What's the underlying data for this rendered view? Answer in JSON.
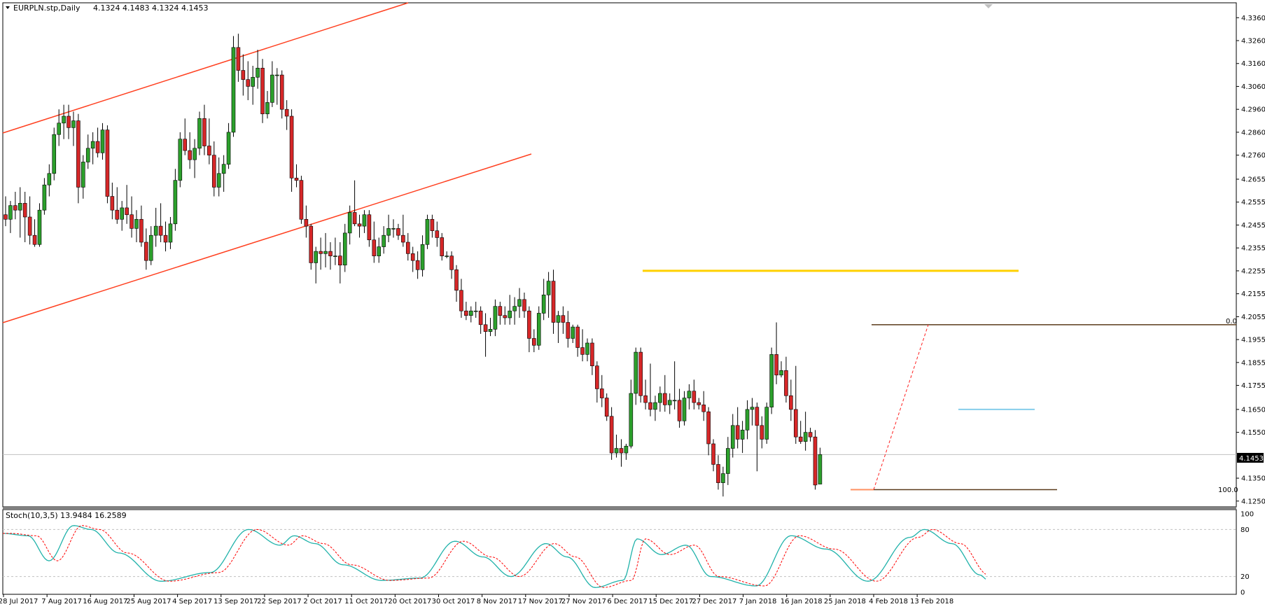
{
  "header": {
    "symbol_label": "EURPLN.stp,Daily",
    "ohlc_label": "4.1324 4.1483 4.1324 4.1453"
  },
  "price_axis": {
    "ticks": [
      "4.3360",
      "4.3260",
      "4.3160",
      "4.3060",
      "4.2960",
      "4.2860",
      "4.2760",
      "4.2655",
      "4.2555",
      "4.2455",
      "4.2355",
      "4.2255",
      "4.2155",
      "4.2055",
      "4.1955",
      "4.1855",
      "4.1755",
      "4.1650",
      "4.1550",
      "4.1350",
      "4.1250"
    ],
    "current_price": "4.1453"
  },
  "fib_labels": {
    "top": "0.0",
    "bottom": "100.0"
  },
  "stoch_panel": {
    "label": "Stoch(10,3,5) 13.9484 16.2589",
    "ticks": [
      "100",
      "80",
      "20",
      "0"
    ]
  },
  "time_axis": {
    "labels": [
      "28 Jul 2017",
      "7 Aug 2017",
      "16 Aug 2017",
      "25 Aug 2017",
      "4 Sep 2017",
      "13 Sep 2017",
      "22 Sep 2017",
      "2 Oct 2017",
      "11 Oct 2017",
      "20 Oct 2017",
      "30 Oct 2017",
      "8 Nov 2017",
      "17 Nov 2017",
      "27 Nov 2017",
      "6 Dec 2017",
      "15 Dec 2017",
      "27 Dec 2017",
      "7 Jan 2018",
      "16 Jan 2018",
      "25 Jan 2018",
      "4 Feb 2018",
      "13 Feb 2018"
    ]
  },
  "colors": {
    "bull": "#2ca02c",
    "bear": "#d62728",
    "channel": "#ff4020",
    "resistance": "#ffd000",
    "fib": "#8b5a2b",
    "cyan_level": "#87ceeb",
    "stoch_main": "#20b2aa",
    "stoch_signal": "#ff0000"
  },
  "chart_data": {
    "type": "candlestick",
    "symbol": "EURPLN",
    "timeframe": "Daily",
    "price_range": [
      4.1225,
      4.3425
    ],
    "candles": [
      {
        "o": 4.25,
        "h": 4.258,
        "l": 4.245,
        "c": 4.248
      },
      {
        "o": 4.248,
        "h": 4.256,
        "l": 4.242,
        "c": 4.254
      },
      {
        "o": 4.254,
        "h": 4.26,
        "l": 4.248,
        "c": 4.252
      },
      {
        "o": 4.252,
        "h": 4.262,
        "l": 4.24,
        "c": 4.255
      },
      {
        "o": 4.255,
        "h": 4.26,
        "l": 4.238,
        "c": 4.249
      },
      {
        "o": 4.249,
        "h": 4.258,
        "l": 4.237,
        "c": 4.241
      },
      {
        "o": 4.241,
        "h": 4.248,
        "l": 4.236,
        "c": 4.237
      },
      {
        "o": 4.237,
        "h": 4.255,
        "l": 4.236,
        "c": 4.252
      },
      {
        "o": 4.252,
        "h": 4.266,
        "l": 4.25,
        "c": 4.263
      },
      {
        "o": 4.263,
        "h": 4.272,
        "l": 4.258,
        "c": 4.268
      },
      {
        "o": 4.268,
        "h": 4.288,
        "l": 4.265,
        "c": 4.285
      },
      {
        "o": 4.285,
        "h": 4.296,
        "l": 4.28,
        "c": 4.29
      },
      {
        "o": 4.29,
        "h": 4.298,
        "l": 4.283,
        "c": 4.293
      },
      {
        "o": 4.293,
        "h": 4.298,
        "l": 4.283,
        "c": 4.288
      },
      {
        "o": 4.288,
        "h": 4.295,
        "l": 4.28,
        "c": 4.291
      },
      {
        "o": 4.291,
        "h": 4.294,
        "l": 4.255,
        "c": 4.262
      },
      {
        "o": 4.262,
        "h": 4.276,
        "l": 4.257,
        "c": 4.273
      },
      {
        "o": 4.273,
        "h": 4.285,
        "l": 4.27,
        "c": 4.279
      },
      {
        "o": 4.279,
        "h": 4.286,
        "l": 4.272,
        "c": 4.282
      },
      {
        "o": 4.282,
        "h": 4.288,
        "l": 4.275,
        "c": 4.277
      },
      {
        "o": 4.277,
        "h": 4.29,
        "l": 4.274,
        "c": 4.287
      },
      {
        "o": 4.287,
        "h": 4.289,
        "l": 4.255,
        "c": 4.258
      },
      {
        "o": 4.258,
        "h": 4.264,
        "l": 4.248,
        "c": 4.252
      },
      {
        "o": 4.252,
        "h": 4.262,
        "l": 4.246,
        "c": 4.248
      },
      {
        "o": 4.248,
        "h": 4.256,
        "l": 4.243,
        "c": 4.253
      },
      {
        "o": 4.253,
        "h": 4.263,
        "l": 4.246,
        "c": 4.25
      },
      {
        "o": 4.25,
        "h": 4.258,
        "l": 4.24,
        "c": 4.244
      },
      {
        "o": 4.244,
        "h": 4.252,
        "l": 4.238,
        "c": 4.248
      },
      {
        "o": 4.248,
        "h": 4.254,
        "l": 4.236,
        "c": 4.238
      },
      {
        "o": 4.238,
        "h": 4.244,
        "l": 4.226,
        "c": 4.23
      },
      {
        "o": 4.23,
        "h": 4.245,
        "l": 4.228,
        "c": 4.241
      },
      {
        "o": 4.241,
        "h": 4.253,
        "l": 4.236,
        "c": 4.245
      },
      {
        "o": 4.245,
        "h": 4.255,
        "l": 4.238,
        "c": 4.241
      },
      {
        "o": 4.241,
        "h": 4.247,
        "l": 4.234,
        "c": 4.238
      },
      {
        "o": 4.238,
        "h": 4.249,
        "l": 4.235,
        "c": 4.246
      },
      {
        "o": 4.246,
        "h": 4.27,
        "l": 4.243,
        "c": 4.265
      },
      {
        "o": 4.265,
        "h": 4.286,
        "l": 4.262,
        "c": 4.283
      },
      {
        "o": 4.283,
        "h": 4.292,
        "l": 4.276,
        "c": 4.278
      },
      {
        "o": 4.278,
        "h": 4.286,
        "l": 4.27,
        "c": 4.274
      },
      {
        "o": 4.274,
        "h": 4.283,
        "l": 4.266,
        "c": 4.279
      },
      {
        "o": 4.279,
        "h": 4.295,
        "l": 4.276,
        "c": 4.292
      },
      {
        "o": 4.292,
        "h": 4.298,
        "l": 4.276,
        "c": 4.28
      },
      {
        "o": 4.28,
        "h": 4.292,
        "l": 4.272,
        "c": 4.276
      },
      {
        "o": 4.276,
        "h": 4.282,
        "l": 4.258,
        "c": 4.262
      },
      {
        "o": 4.262,
        "h": 4.275,
        "l": 4.258,
        "c": 4.268
      },
      {
        "o": 4.268,
        "h": 4.276,
        "l": 4.26,
        "c": 4.272
      },
      {
        "o": 4.272,
        "h": 4.29,
        "l": 4.27,
        "c": 4.286
      },
      {
        "o": 4.286,
        "h": 4.328,
        "l": 4.284,
        "c": 4.323
      },
      {
        "o": 4.323,
        "h": 4.329,
        "l": 4.308,
        "c": 4.313
      },
      {
        "o": 4.313,
        "h": 4.32,
        "l": 4.302,
        "c": 4.309
      },
      {
        "o": 4.309,
        "h": 4.317,
        "l": 4.3,
        "c": 4.306
      },
      {
        "o": 4.306,
        "h": 4.315,
        "l": 4.298,
        "c": 4.31
      },
      {
        "o": 4.31,
        "h": 4.322,
        "l": 4.305,
        "c": 4.314
      },
      {
        "o": 4.314,
        "h": 4.318,
        "l": 4.29,
        "c": 4.294
      },
      {
        "o": 4.294,
        "h": 4.304,
        "l": 4.292,
        "c": 4.299
      },
      {
        "o": 4.299,
        "h": 4.317,
        "l": 4.297,
        "c": 4.311
      },
      {
        "o": 4.311,
        "h": 4.314,
        "l": 4.298,
        "c": 4.311
      },
      {
        "o": 4.311,
        "h": 4.313,
        "l": 4.292,
        "c": 4.296
      },
      {
        "o": 4.296,
        "h": 4.3,
        "l": 4.287,
        "c": 4.293
      },
      {
        "o": 4.293,
        "h": 4.296,
        "l": 4.26,
        "c": 4.266
      },
      {
        "o": 4.266,
        "h": 4.272,
        "l": 4.262,
        "c": 4.265
      },
      {
        "o": 4.265,
        "h": 4.267,
        "l": 4.246,
        "c": 4.248
      },
      {
        "o": 4.248,
        "h": 4.254,
        "l": 4.24,
        "c": 4.245
      },
      {
        "o": 4.245,
        "h": 4.246,
        "l": 4.226,
        "c": 4.229
      },
      {
        "o": 4.229,
        "h": 4.236,
        "l": 4.22,
        "c": 4.234
      },
      {
        "o": 4.234,
        "h": 4.24,
        "l": 4.226,
        "c": 4.233
      },
      {
        "o": 4.233,
        "h": 4.242,
        "l": 4.227,
        "c": 4.234
      },
      {
        "o": 4.234,
        "h": 4.238,
        "l": 4.226,
        "c": 4.232
      },
      {
        "o": 4.232,
        "h": 4.24,
        "l": 4.228,
        "c": 4.232
      },
      {
        "o": 4.232,
        "h": 4.238,
        "l": 4.22,
        "c": 4.228
      },
      {
        "o": 4.228,
        "h": 4.246,
        "l": 4.225,
        "c": 4.242
      },
      {
        "o": 4.242,
        "h": 4.254,
        "l": 4.237,
        "c": 4.251
      },
      {
        "o": 4.251,
        "h": 4.265,
        "l": 4.245,
        "c": 4.246
      },
      {
        "o": 4.246,
        "h": 4.25,
        "l": 4.24,
        "c": 4.245
      },
      {
        "o": 4.245,
        "h": 4.252,
        "l": 4.242,
        "c": 4.25
      },
      {
        "o": 4.25,
        "h": 4.252,
        "l": 4.236,
        "c": 4.239
      },
      {
        "o": 4.239,
        "h": 4.247,
        "l": 4.229,
        "c": 4.232
      },
      {
        "o": 4.232,
        "h": 4.24,
        "l": 4.229,
        "c": 4.236
      },
      {
        "o": 4.236,
        "h": 4.245,
        "l": 4.233,
        "c": 4.241
      },
      {
        "o": 4.241,
        "h": 4.25,
        "l": 4.238,
        "c": 4.244
      },
      {
        "o": 4.244,
        "h": 4.248,
        "l": 4.24,
        "c": 4.244
      },
      {
        "o": 4.244,
        "h": 4.246,
        "l": 4.239,
        "c": 4.241
      },
      {
        "o": 4.241,
        "h": 4.25,
        "l": 4.236,
        "c": 4.238
      },
      {
        "o": 4.238,
        "h": 4.242,
        "l": 4.23,
        "c": 4.233
      },
      {
        "o": 4.233,
        "h": 4.236,
        "l": 4.225,
        "c": 4.23
      },
      {
        "o": 4.23,
        "h": 4.234,
        "l": 4.222,
        "c": 4.226
      },
      {
        "o": 4.226,
        "h": 4.241,
        "l": 4.223,
        "c": 4.237
      },
      {
        "o": 4.237,
        "h": 4.25,
        "l": 4.235,
        "c": 4.248
      },
      {
        "o": 4.248,
        "h": 4.25,
        "l": 4.24,
        "c": 4.243
      },
      {
        "o": 4.243,
        "h": 4.247,
        "l": 4.236,
        "c": 4.24
      },
      {
        "o": 4.24,
        "h": 4.242,
        "l": 4.23,
        "c": 4.232
      },
      {
        "o": 4.232,
        "h": 4.234,
        "l": 4.231,
        "c": 4.232
      },
      {
        "o": 4.232,
        "h": 4.234,
        "l": 4.222,
        "c": 4.226
      },
      {
        "o": 4.226,
        "h": 4.228,
        "l": 4.212,
        "c": 4.217
      },
      {
        "o": 4.217,
        "h": 4.222,
        "l": 4.205,
        "c": 4.208
      },
      {
        "o": 4.208,
        "h": 4.212,
        "l": 4.204,
        "c": 4.206
      },
      {
        "o": 4.206,
        "h": 4.21,
        "l": 4.203,
        "c": 4.208
      },
      {
        "o": 4.208,
        "h": 4.212,
        "l": 4.205,
        "c": 4.208
      },
      {
        "o": 4.208,
        "h": 4.21,
        "l": 4.198,
        "c": 4.202
      },
      {
        "o": 4.202,
        "h": 4.207,
        "l": 4.188,
        "c": 4.199
      },
      {
        "o": 4.199,
        "h": 4.205,
        "l": 4.197,
        "c": 4.2
      },
      {
        "o": 4.2,
        "h": 4.213,
        "l": 4.197,
        "c": 4.21
      },
      {
        "o": 4.21,
        "h": 4.212,
        "l": 4.202,
        "c": 4.206
      },
      {
        "o": 4.206,
        "h": 4.21,
        "l": 4.202,
        "c": 4.205
      },
      {
        "o": 4.205,
        "h": 4.215,
        "l": 4.202,
        "c": 4.208
      },
      {
        "o": 4.208,
        "h": 4.214,
        "l": 4.202,
        "c": 4.21
      },
      {
        "o": 4.21,
        "h": 4.218,
        "l": 4.205,
        "c": 4.213
      },
      {
        "o": 4.213,
        "h": 4.216,
        "l": 4.205,
        "c": 4.208
      },
      {
        "o": 4.208,
        "h": 4.21,
        "l": 4.19,
        "c": 4.196
      },
      {
        "o": 4.196,
        "h": 4.2,
        "l": 4.19,
        "c": 4.193
      },
      {
        "o": 4.193,
        "h": 4.21,
        "l": 4.191,
        "c": 4.207
      },
      {
        "o": 4.207,
        "h": 4.222,
        "l": 4.204,
        "c": 4.215
      },
      {
        "o": 4.215,
        "h": 4.225,
        "l": 4.205,
        "c": 4.221
      },
      {
        "o": 4.221,
        "h": 4.226,
        "l": 4.198,
        "c": 4.203
      },
      {
        "o": 4.203,
        "h": 4.208,
        "l": 4.194,
        "c": 4.206
      },
      {
        "o": 4.206,
        "h": 4.21,
        "l": 4.198,
        "c": 4.203
      },
      {
        "o": 4.203,
        "h": 4.208,
        "l": 4.192,
        "c": 4.196
      },
      {
        "o": 4.196,
        "h": 4.202,
        "l": 4.194,
        "c": 4.201
      },
      {
        "o": 4.201,
        "h": 4.202,
        "l": 4.188,
        "c": 4.192
      },
      {
        "o": 4.192,
        "h": 4.2,
        "l": 4.186,
        "c": 4.189
      },
      {
        "o": 4.189,
        "h": 4.196,
        "l": 4.186,
        "c": 4.194
      },
      {
        "o": 4.194,
        "h": 4.196,
        "l": 4.18,
        "c": 4.184
      },
      {
        "o": 4.184,
        "h": 4.186,
        "l": 4.168,
        "c": 4.174
      },
      {
        "o": 4.174,
        "h": 4.18,
        "l": 4.166,
        "c": 4.17
      },
      {
        "o": 4.17,
        "h": 4.172,
        "l": 4.16,
        "c": 4.162
      },
      {
        "o": 4.162,
        "h": 4.166,
        "l": 4.143,
        "c": 4.146
      },
      {
        "o": 4.146,
        "h": 4.154,
        "l": 4.144,
        "c": 4.148
      },
      {
        "o": 4.148,
        "h": 4.152,
        "l": 4.14,
        "c": 4.146
      },
      {
        "o": 4.146,
        "h": 4.15,
        "l": 4.143,
        "c": 4.149
      },
      {
        "o": 4.149,
        "h": 4.178,
        "l": 4.148,
        "c": 4.172
      },
      {
        "o": 4.172,
        "h": 4.192,
        "l": 4.167,
        "c": 4.19
      },
      {
        "o": 4.19,
        "h": 4.192,
        "l": 4.168,
        "c": 4.171
      },
      {
        "o": 4.171,
        "h": 4.178,
        "l": 4.165,
        "c": 4.168
      },
      {
        "o": 4.168,
        "h": 4.185,
        "l": 4.162,
        "c": 4.165
      },
      {
        "o": 4.165,
        "h": 4.171,
        "l": 4.16,
        "c": 4.168
      },
      {
        "o": 4.168,
        "h": 4.175,
        "l": 4.164,
        "c": 4.172
      },
      {
        "o": 4.172,
        "h": 4.18,
        "l": 4.164,
        "c": 4.167
      },
      {
        "o": 4.167,
        "h": 4.172,
        "l": 4.163,
        "c": 4.169
      },
      {
        "o": 4.169,
        "h": 4.186,
        "l": 4.165,
        "c": 4.169
      },
      {
        "o": 4.169,
        "h": 4.174,
        "l": 4.157,
        "c": 4.16
      },
      {
        "o": 4.16,
        "h": 4.173,
        "l": 4.158,
        "c": 4.17
      },
      {
        "o": 4.17,
        "h": 4.176,
        "l": 4.165,
        "c": 4.173
      },
      {
        "o": 4.173,
        "h": 4.178,
        "l": 4.165,
        "c": 4.168
      },
      {
        "o": 4.168,
        "h": 4.17,
        "l": 4.165,
        "c": 4.167
      },
      {
        "o": 4.167,
        "h": 4.173,
        "l": 4.16,
        "c": 4.164
      },
      {
        "o": 4.164,
        "h": 4.166,
        "l": 4.145,
        "c": 4.15
      },
      {
        "o": 4.15,
        "h": 4.152,
        "l": 4.138,
        "c": 4.141
      },
      {
        "o": 4.141,
        "h": 4.145,
        "l": 4.13,
        "c": 4.133
      },
      {
        "o": 4.133,
        "h": 4.14,
        "l": 4.127,
        "c": 4.137
      },
      {
        "o": 4.137,
        "h": 4.153,
        "l": 4.132,
        "c": 4.148
      },
      {
        "o": 4.148,
        "h": 4.163,
        "l": 4.144,
        "c": 4.158
      },
      {
        "o": 4.158,
        "h": 4.166,
        "l": 4.148,
        "c": 4.152
      },
      {
        "o": 4.152,
        "h": 4.16,
        "l": 4.146,
        "c": 4.156
      },
      {
        "o": 4.156,
        "h": 4.169,
        "l": 4.152,
        "c": 4.165
      },
      {
        "o": 4.165,
        "h": 4.17,
        "l": 4.158,
        "c": 4.166
      },
      {
        "o": 4.166,
        "h": 4.168,
        "l": 4.138,
        "c": 4.158
      },
      {
        "o": 4.158,
        "h": 4.162,
        "l": 4.148,
        "c": 4.152
      },
      {
        "o": 4.152,
        "h": 4.168,
        "l": 4.15,
        "c": 4.166
      },
      {
        "o": 4.166,
        "h": 4.192,
        "l": 4.163,
        "c": 4.189
      },
      {
        "o": 4.189,
        "h": 4.203,
        "l": 4.176,
        "c": 4.18
      },
      {
        "o": 4.18,
        "h": 4.186,
        "l": 4.179,
        "c": 4.182
      },
      {
        "o": 4.182,
        "h": 4.188,
        "l": 4.168,
        "c": 4.171
      },
      {
        "o": 4.171,
        "h": 4.178,
        "l": 4.16,
        "c": 4.165
      },
      {
        "o": 4.165,
        "h": 4.184,
        "l": 4.15,
        "c": 4.153
      },
      {
        "o": 4.153,
        "h": 4.16,
        "l": 4.15,
        "c": 4.151
      },
      {
        "o": 4.151,
        "h": 4.164,
        "l": 4.147,
        "c": 4.155
      },
      {
        "o": 4.155,
        "h": 4.157,
        "l": 4.151,
        "c": 4.153
      },
      {
        "o": 4.153,
        "h": 4.156,
        "l": 4.13,
        "c": 4.132
      },
      {
        "o": 4.1324,
        "h": 4.1483,
        "l": 4.1324,
        "c": 4.1453
      }
    ],
    "horizontal_levels": [
      {
        "price": 4.2255,
        "color": "yellow"
      },
      {
        "price": 4.202,
        "color": "brown",
        "label": "0.0"
      },
      {
        "price": 4.165,
        "color": "light-blue"
      },
      {
        "price": 4.1453,
        "color": "gray"
      },
      {
        "price": 4.13,
        "color": "brown",
        "label": "100.0"
      }
    ],
    "stochastic": {
      "name": "Stoch(10,3,5)",
      "main_value": 13.9484,
      "signal_value": 16.2589,
      "levels": [
        20,
        80
      ],
      "range": [
        0,
        100
      ]
    }
  }
}
